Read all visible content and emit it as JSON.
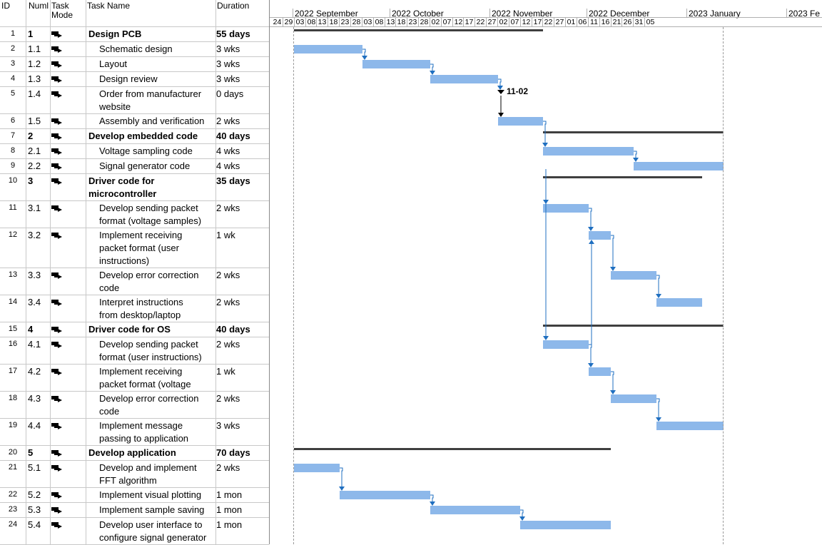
{
  "columns": {
    "id": "ID",
    "num": "Numl",
    "mode": "Task Mode",
    "name": "Task Name",
    "duration": "Duration"
  },
  "timeline": {
    "months": [
      "2022 September",
      "2022 October",
      "2022 November",
      "2022 December",
      "2023 January",
      "2023 Fe"
    ],
    "days": [
      "24",
      "29",
      "03",
      "08",
      "13",
      "18",
      "23",
      "28",
      "03",
      "08",
      "13",
      "18",
      "23",
      "28",
      "02",
      "07",
      "12",
      "17",
      "22",
      "27",
      "02",
      "07",
      "12",
      "17",
      "22",
      "27",
      "01",
      "06",
      "11",
      "16",
      "21",
      "26",
      "31",
      "05"
    ],
    "milestone_label": "11-02"
  },
  "tasks": [
    {
      "id": "1",
      "num": "1",
      "name": "Design PCB",
      "duration": "55 days",
      "bold": true,
      "lines": 1
    },
    {
      "id": "2",
      "num": "1.1",
      "name": "Schematic design",
      "duration": "3 wks",
      "lines": 1
    },
    {
      "id": "3",
      "num": "1.2",
      "name": "Layout",
      "duration": "3 wks",
      "lines": 1
    },
    {
      "id": "4",
      "num": "1.3",
      "name": "Design review",
      "duration": "3 wks",
      "lines": 1
    },
    {
      "id": "5",
      "num": "1.4",
      "name": "Order from manufacturer",
      "name2": "website",
      "duration": "0 days",
      "lines": 2
    },
    {
      "id": "6",
      "num": "1.5",
      "name": "Assembly and verification",
      "duration": "2 wks",
      "lines": 1
    },
    {
      "id": "7",
      "num": "2",
      "name": "Develop embedded code",
      "duration": "40 days",
      "bold": true,
      "lines": 1
    },
    {
      "id": "8",
      "num": "2.1",
      "name": "Voltage sampling code",
      "duration": "4 wks",
      "lines": 1
    },
    {
      "id": "9",
      "num": "2.2",
      "name": "Signal generator code",
      "duration": "4 wks",
      "lines": 1
    },
    {
      "id": "10",
      "num": "3",
      "name": "Driver code for",
      "name2": "microcontroller",
      "duration": "35 days",
      "bold": true,
      "lines": 2
    },
    {
      "id": "11",
      "num": "3.1",
      "name": "Develop sending packet",
      "name2": "format (voltage samples)",
      "duration": "2 wks",
      "lines": 2
    },
    {
      "id": "12",
      "num": "3.2",
      "name": "Implement receiving",
      "name2": "packet format (user",
      "name3": "instructions)",
      "duration": "1 wk",
      "lines": 3
    },
    {
      "id": "13",
      "num": "3.3",
      "name": "Develop error correction",
      "name2": "code",
      "duration": "2 wks",
      "lines": 2
    },
    {
      "id": "14",
      "num": "3.4",
      "name": "Interpret instructions",
      "name2": "from desktop/laptop",
      "duration": "2 wks",
      "lines": 2
    },
    {
      "id": "15",
      "num": "4",
      "name": "Driver code for OS",
      "duration": "40 days",
      "bold": true,
      "lines": 1
    },
    {
      "id": "16",
      "num": "4.1",
      "name": "Develop sending packet",
      "name2": "format (user instructions)",
      "duration": "2 wks",
      "lines": 2
    },
    {
      "id": "17",
      "num": "4.2",
      "name": "Implement receiving",
      "name2": "packet format (voltage",
      "duration": "1 wk",
      "lines": 2
    },
    {
      "id": "18",
      "num": "4.3",
      "name": "Develop error correction",
      "name2": "code",
      "duration": "2 wks",
      "lines": 2
    },
    {
      "id": "19",
      "num": "4.4",
      "name": "Implement message",
      "name2": "passing to application",
      "duration": "3 wks",
      "lines": 2
    },
    {
      "id": "20",
      "num": "5",
      "name": "Develop application",
      "duration": "70 days",
      "bold": true,
      "lines": 1
    },
    {
      "id": "21",
      "num": "5.1",
      "name": "Develop and implement",
      "name2": "FFT algorithm",
      "duration": "2 wks",
      "lines": 2
    },
    {
      "id": "22",
      "num": "5.2",
      "name": "Implement visual plotting",
      "duration": "1 mon",
      "lines": 1
    },
    {
      "id": "23",
      "num": "5.3",
      "name": "Implement sample saving",
      "duration": "1 mon",
      "lines": 1
    },
    {
      "id": "24",
      "num": "5.4",
      "name": "Develop user interface to",
      "name2": "configure signal generator",
      "duration": "1 mon",
      "lines": 2
    }
  ],
  "colors": {
    "bar": "#8db8ea",
    "summary": "#3f3f3f",
    "link": "#1f6fc0",
    "milestone": "#000000",
    "grid": "#c8c8c8"
  }
}
